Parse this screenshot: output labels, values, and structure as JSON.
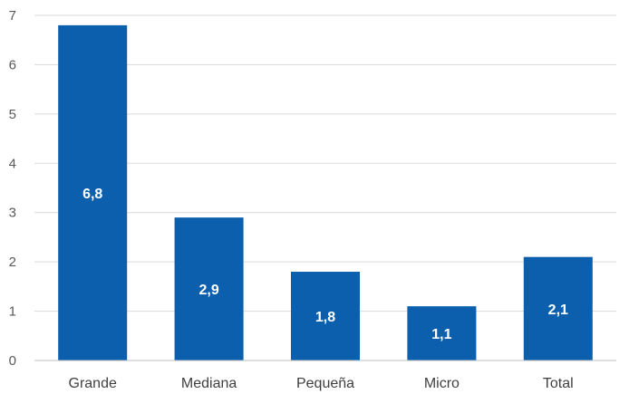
{
  "chart_data": {
    "type": "bar",
    "categories": [
      "Grande",
      "Mediana",
      "Pequeña",
      "Micro",
      "Total"
    ],
    "values": [
      6.8,
      2.9,
      1.8,
      1.1,
      2.1
    ],
    "data_labels": [
      "6,8",
      "2,9",
      "1,8",
      "1,1",
      "2,1"
    ],
    "title": "",
    "xlabel": "",
    "ylabel": "",
    "ylim": [
      0,
      7
    ],
    "yticks": [
      0,
      1,
      2,
      3,
      4,
      5,
      6,
      7
    ],
    "grid": true,
    "legend": "none",
    "bar_color": "#0b5fad",
    "grid_color": "#d9d9d9"
  }
}
